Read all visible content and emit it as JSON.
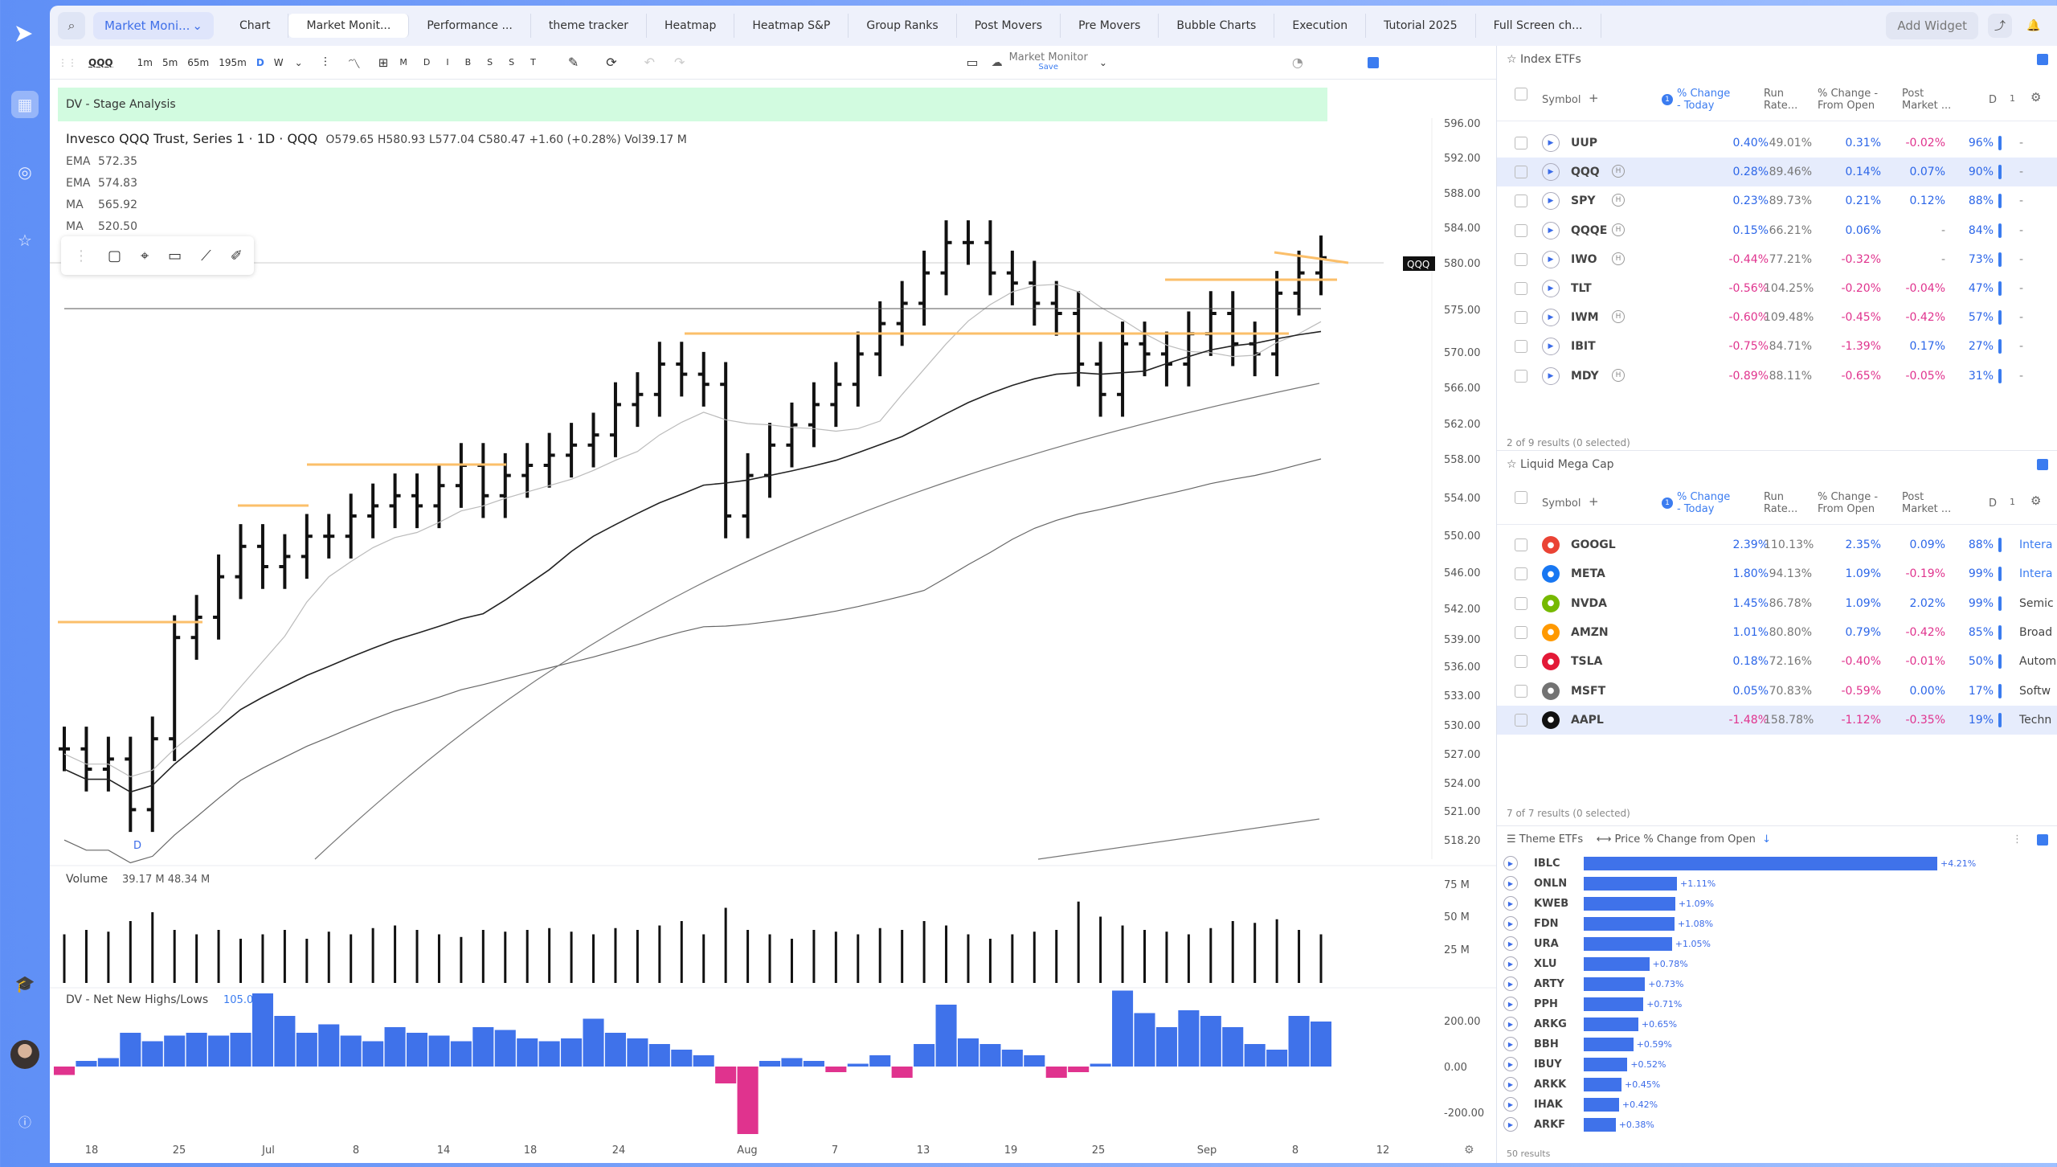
{
  "topbar": {
    "market_select": "Market Moni...",
    "tabs": [
      "Chart",
      "Market Monit...",
      "Performance ...",
      "theme tracker",
      "Heatmap",
      "Heatmap S&P",
      "Group Ranks",
      "Post Movers",
      "Pre Movers",
      "Bubble Charts",
      "Execution",
      "Tutorial 2025",
      "Full Screen ch..."
    ],
    "active_tab": 1,
    "add_widget": "Add Widget"
  },
  "chart": {
    "symbol": "QQQ",
    "intervals": [
      "1m",
      "5m",
      "65m",
      "195m",
      "D",
      "W"
    ],
    "active_interval": "D",
    "toolbar_letters": [
      "M",
      "D",
      "I",
      "B",
      "S",
      "S",
      "T"
    ],
    "layout_name": "Market Monitor",
    "layout_save": "Save",
    "indicator_label": "DV - Stage Analysis",
    "title": "Invesco QQQ Trust, Series 1 · 1D · QQQ",
    "ohlc": {
      "o": "O579.65",
      "h": "H580.93",
      "l": "L577.04",
      "c": "C580.47",
      "chg": "+1.60 (+0.28%)",
      "vol": "Vol39.17 M"
    },
    "mas": [
      {
        "k": "EMA",
        "v": "572.35"
      },
      {
        "k": "EMA",
        "v": "574.83"
      },
      {
        "k": "MA",
        "v": "565.92"
      },
      {
        "k": "MA",
        "v": "520.50"
      }
    ],
    "price_ticks": [
      "596.00",
      "592.00",
      "588.00",
      "584.00",
      "580.00",
      "575.00",
      "570.00",
      "566.00",
      "562.00",
      "558.00",
      "554.00",
      "550.00",
      "546.00",
      "542.00",
      "539.00",
      "536.00",
      "533.00",
      "530.00",
      "527.00",
      "524.00",
      "521.00",
      "518.20"
    ],
    "last_tag": "QQQ",
    "period_marker": "D",
    "volume_label": "Volume",
    "volume_vals": "39.17 M  48.34 M",
    "volume_ticks": [
      "75 M",
      "50 M",
      "25 M"
    ],
    "nnh_label": "DV - Net New Highs/Lows",
    "nnh_val": "105.00",
    "nnh_ticks": [
      "200.00",
      "0.00",
      "-200.00"
    ],
    "date_ticks": [
      "18",
      "25",
      "Jul",
      "8",
      "14",
      "18",
      "24",
      "Aug",
      "7",
      "13",
      "19",
      "25",
      "Sep",
      "8",
      "12"
    ]
  },
  "index_etfs": {
    "title": "Index ETFs",
    "cols": {
      "sym": "Symbol",
      "c1": "% Change - Today",
      "c2": "Run Rate...",
      "c3": "% Change - From Open",
      "c4": "Post Market ...",
      "c5": "D",
      "c6": "1"
    },
    "rows": [
      {
        "s": "UUP",
        "hl": false,
        "a": "0.40%",
        "b": "49.01%",
        "c": "0.31%",
        "d": "-0.02%",
        "e": "96%",
        "f": "-",
        "sel": false
      },
      {
        "s": "QQQ",
        "hl": true,
        "a": "0.28%",
        "b": "89.46%",
        "c": "0.14%",
        "d": "0.07%",
        "e": "90%",
        "f": "-",
        "sel": true
      },
      {
        "s": "SPY",
        "hl": true,
        "a": "0.23%",
        "b": "89.73%",
        "c": "0.21%",
        "d": "0.12%",
        "e": "88%",
        "f": "-",
        "sel": false
      },
      {
        "s": "QQQE",
        "hl": true,
        "a": "0.15%",
        "b": "66.21%",
        "c": "0.06%",
        "d": "-",
        "e": "84%",
        "f": "-",
        "sel": false
      },
      {
        "s": "IWO",
        "hl": true,
        "a": "-0.44%",
        "b": "77.21%",
        "c": "-0.32%",
        "d": "-",
        "e": "73%",
        "f": "-",
        "sel": false
      },
      {
        "s": "TLT",
        "hl": false,
        "a": "-0.56%",
        "b": "104.25%",
        "c": "-0.20%",
        "d": "-0.04%",
        "e": "47%",
        "f": "-",
        "sel": false
      },
      {
        "s": "IWM",
        "hl": true,
        "a": "-0.60%",
        "b": "109.48%",
        "c": "-0.45%",
        "d": "-0.42%",
        "e": "57%",
        "f": "-",
        "sel": false
      },
      {
        "s": "IBIT",
        "hl": false,
        "a": "-0.75%",
        "b": "84.71%",
        "c": "-1.39%",
        "d": "0.17%",
        "e": "27%",
        "f": "-",
        "sel": false
      },
      {
        "s": "MDY",
        "hl": true,
        "a": "-0.89%",
        "b": "88.11%",
        "c": "-0.65%",
        "d": "-0.05%",
        "e": "31%",
        "f": "-",
        "sel": false
      }
    ],
    "footer": "2 of 9 results (0 selected)"
  },
  "mega_cap": {
    "title": "Liquid Mega Cap",
    "rows": [
      {
        "s": "GOOGL",
        "logo": "#ea4335",
        "a": "2.39%",
        "b": "110.13%",
        "c": "2.35%",
        "d": "0.09%",
        "e": "88%",
        "f": "Intera"
      },
      {
        "s": "META",
        "logo": "#1877f2",
        "a": "1.80%",
        "b": "94.13%",
        "c": "1.09%",
        "d": "-0.19%",
        "e": "99%",
        "f": "Intera"
      },
      {
        "s": "NVDA",
        "logo": "#76b900",
        "a": "1.45%",
        "b": "86.78%",
        "c": "1.09%",
        "d": "2.02%",
        "e": "99%",
        "f": "Semic"
      },
      {
        "s": "AMZN",
        "logo": "#ff9900",
        "a": "1.01%",
        "b": "80.80%",
        "c": "0.79%",
        "d": "-0.42%",
        "e": "85%",
        "f": "Broad"
      },
      {
        "s": "TSLA",
        "logo": "#e31937",
        "a": "0.18%",
        "b": "72.16%",
        "c": "-0.40%",
        "d": "-0.01%",
        "e": "50%",
        "f": "Autom"
      },
      {
        "s": "MSFT",
        "logo": "#737373",
        "a": "0.05%",
        "b": "70.83%",
        "c": "-0.59%",
        "d": "0.00%",
        "e": "17%",
        "f": "Softw"
      },
      {
        "s": "AAPL",
        "logo": "#111111",
        "a": "-1.48%",
        "b": "158.78%",
        "c": "-1.12%",
        "d": "-0.35%",
        "e": "19%",
        "f": "Techn"
      }
    ],
    "footer": "7 of 7 results (0 selected)"
  },
  "themes": {
    "title": "Theme ETFs",
    "sort": "Price % Change from Open",
    "rows": [
      {
        "s": "IBLC",
        "v": 4.21,
        "l": "+4.21%"
      },
      {
        "s": "ONLN",
        "v": 1.11,
        "l": "+1.11%"
      },
      {
        "s": "KWEB",
        "v": 1.09,
        "l": "+1.09%"
      },
      {
        "s": "FDN",
        "v": 1.08,
        "l": "+1.08%"
      },
      {
        "s": "URA",
        "v": 1.05,
        "l": "+1.05%"
      },
      {
        "s": "XLU",
        "v": 0.78,
        "l": "+0.78%"
      },
      {
        "s": "ARTY",
        "v": 0.73,
        "l": "+0.73%"
      },
      {
        "s": "PPH",
        "v": 0.71,
        "l": "+0.71%"
      },
      {
        "s": "ARKG",
        "v": 0.65,
        "l": "+0.65%"
      },
      {
        "s": "BBH",
        "v": 0.59,
        "l": "+0.59%"
      },
      {
        "s": "IBUY",
        "v": 0.52,
        "l": "+0.52%"
      },
      {
        "s": "ARKK",
        "v": 0.45,
        "l": "+0.45%"
      },
      {
        "s": "IHAK",
        "v": 0.42,
        "l": "+0.42%"
      },
      {
        "s": "ARKF",
        "v": 0.38,
        "l": "+0.38%"
      }
    ],
    "footer": "50 results"
  }
}
